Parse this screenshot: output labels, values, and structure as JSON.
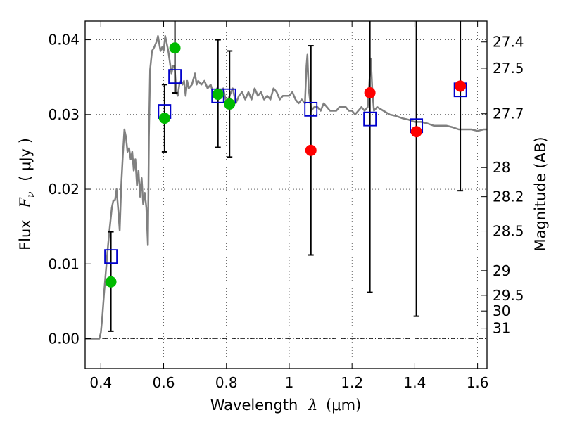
{
  "chart_data": {
    "type": "scatter",
    "xlabel": "Wavelength",
    "xlabel_symbol": "λ",
    "xlabel_unit": "(μm)",
    "ylabel": "Flux",
    "ylabel_symbol": "F",
    "ylabel_subscript": "ν",
    "ylabel_unit": "( μJy )",
    "y2label": "Magnitude (AB)",
    "xlim": [
      0.35,
      1.63
    ],
    "ylim": [
      -0.004,
      0.0425
    ],
    "grid": true,
    "x_ticks": [
      0.4,
      0.6,
      0.8,
      1.0,
      1.2,
      1.4,
      1.6
    ],
    "x_tick_labels": [
      "0.4",
      "0.6",
      "0.8",
      "1",
      "1.2",
      "1.4",
      "1.6"
    ],
    "y_ticks": [
      0.0,
      0.01,
      0.02,
      0.03,
      0.04
    ],
    "y_tick_labels": [
      "0.00",
      "0.01",
      "0.02",
      "0.03",
      "0.04"
    ],
    "y2_ticks": [
      {
        "label": "27.4",
        "flux": 0.0397
      },
      {
        "label": "27.5",
        "flux": 0.0362
      },
      {
        "label": "27.7",
        "flux": 0.0301
      },
      {
        "label": "28",
        "flux": 0.0229
      },
      {
        "label": "28.2",
        "flux": 0.019
      },
      {
        "label": "28.5",
        "flux": 0.0144
      },
      {
        "label": "29",
        "flux": 0.0091
      },
      {
        "label": "29.5",
        "flux": 0.0058
      },
      {
        "label": "30",
        "flux": 0.0037
      },
      {
        "label": "31",
        "flux": 0.0014
      }
    ],
    "zero_line": 0.0,
    "series": [
      {
        "kind": "line",
        "color": "#808080",
        "points": [
          [
            0.35,
            0.0
          ],
          [
            0.395,
            0.0
          ],
          [
            0.4,
            0.0008
          ],
          [
            0.405,
            0.003
          ],
          [
            0.41,
            0.006
          ],
          [
            0.415,
            0.0085
          ],
          [
            0.42,
            0.011
          ],
          [
            0.425,
            0.0135
          ],
          [
            0.43,
            0.0155
          ],
          [
            0.435,
            0.0175
          ],
          [
            0.44,
            0.0185
          ],
          [
            0.445,
            0.0185
          ],
          [
            0.45,
            0.02
          ],
          [
            0.455,
            0.0175
          ],
          [
            0.46,
            0.0145
          ],
          [
            0.465,
            0.0205
          ],
          [
            0.47,
            0.0245
          ],
          [
            0.475,
            0.028
          ],
          [
            0.48,
            0.027
          ],
          [
            0.485,
            0.025
          ],
          [
            0.49,
            0.0255
          ],
          [
            0.495,
            0.024
          ],
          [
            0.5,
            0.025
          ],
          [
            0.505,
            0.0225
          ],
          [
            0.51,
            0.024
          ],
          [
            0.515,
            0.0205
          ],
          [
            0.52,
            0.0225
          ],
          [
            0.525,
            0.019
          ],
          [
            0.53,
            0.0215
          ],
          [
            0.535,
            0.018
          ],
          [
            0.54,
            0.0195
          ],
          [
            0.545,
            0.0175
          ],
          [
            0.55,
            0.0125
          ],
          [
            0.553,
            0.027
          ],
          [
            0.557,
            0.036
          ],
          [
            0.563,
            0.0385
          ],
          [
            0.57,
            0.039
          ],
          [
            0.578,
            0.0398
          ],
          [
            0.582,
            0.0405
          ],
          [
            0.586,
            0.0395
          ],
          [
            0.59,
            0.0385
          ],
          [
            0.595,
            0.039
          ],
          [
            0.6,
            0.0385
          ],
          [
            0.605,
            0.0405
          ],
          [
            0.61,
            0.0395
          ],
          [
            0.615,
            0.0385
          ],
          [
            0.62,
            0.037
          ],
          [
            0.625,
            0.0355
          ],
          [
            0.63,
            0.0365
          ],
          [
            0.635,
            0.0365
          ],
          [
            0.64,
            0.033
          ],
          [
            0.645,
            0.0325
          ],
          [
            0.65,
            0.034
          ],
          [
            0.655,
            0.0345
          ],
          [
            0.66,
            0.034
          ],
          [
            0.665,
            0.0345
          ],
          [
            0.67,
            0.0325
          ],
          [
            0.675,
            0.0345
          ],
          [
            0.68,
            0.0335
          ],
          [
            0.69,
            0.034
          ],
          [
            0.7,
            0.0355
          ],
          [
            0.705,
            0.034
          ],
          [
            0.71,
            0.0345
          ],
          [
            0.72,
            0.034
          ],
          [
            0.73,
            0.0345
          ],
          [
            0.74,
            0.0335
          ],
          [
            0.75,
            0.034
          ],
          [
            0.76,
            0.0325
          ],
          [
            0.77,
            0.0335
          ],
          [
            0.78,
            0.0325
          ],
          [
            0.79,
            0.0335
          ],
          [
            0.8,
            0.0315
          ],
          [
            0.81,
            0.0325
          ],
          [
            0.82,
            0.0335
          ],
          [
            0.83,
            0.0315
          ],
          [
            0.84,
            0.0325
          ],
          [
            0.85,
            0.033
          ],
          [
            0.86,
            0.032
          ],
          [
            0.87,
            0.033
          ],
          [
            0.88,
            0.032
          ],
          [
            0.89,
            0.0335
          ],
          [
            0.9,
            0.0325
          ],
          [
            0.91,
            0.033
          ],
          [
            0.92,
            0.032
          ],
          [
            0.93,
            0.0325
          ],
          [
            0.94,
            0.032
          ],
          [
            0.95,
            0.0335
          ],
          [
            0.96,
            0.033
          ],
          [
            0.97,
            0.032
          ],
          [
            0.98,
            0.0325
          ],
          [
            0.99,
            0.0325
          ],
          [
            1.0,
            0.0325
          ],
          [
            1.01,
            0.033
          ],
          [
            1.02,
            0.032
          ],
          [
            1.03,
            0.0315
          ],
          [
            1.04,
            0.032
          ],
          [
            1.05,
            0.0315
          ],
          [
            1.055,
            0.0365
          ],
          [
            1.058,
            0.038
          ],
          [
            1.062,
            0.0335
          ],
          [
            1.07,
            0.0305
          ],
          [
            1.08,
            0.031
          ],
          [
            1.09,
            0.031
          ],
          [
            1.1,
            0.0305
          ],
          [
            1.11,
            0.0315
          ],
          [
            1.12,
            0.031
          ],
          [
            1.13,
            0.0305
          ],
          [
            1.14,
            0.0305
          ],
          [
            1.15,
            0.0305
          ],
          [
            1.16,
            0.031
          ],
          [
            1.17,
            0.031
          ],
          [
            1.18,
            0.031
          ],
          [
            1.19,
            0.0305
          ],
          [
            1.2,
            0.0305
          ],
          [
            1.21,
            0.03
          ],
          [
            1.22,
            0.0305
          ],
          [
            1.23,
            0.031
          ],
          [
            1.24,
            0.0305
          ],
          [
            1.25,
            0.031
          ],
          [
            1.255,
            0.034
          ],
          [
            1.26,
            0.0375
          ],
          [
            1.265,
            0.033
          ],
          [
            1.27,
            0.0305
          ],
          [
            1.28,
            0.031
          ],
          [
            1.3,
            0.0305
          ],
          [
            1.32,
            0.03
          ],
          [
            1.34,
            0.0298
          ],
          [
            1.36,
            0.0295
          ],
          [
            1.38,
            0.0293
          ],
          [
            1.4,
            0.029
          ],
          [
            1.42,
            0.029
          ],
          [
            1.44,
            0.0288
          ],
          [
            1.46,
            0.0285
          ],
          [
            1.48,
            0.0285
          ],
          [
            1.5,
            0.0285
          ],
          [
            1.52,
            0.0283
          ],
          [
            1.54,
            0.028
          ],
          [
            1.56,
            0.028
          ],
          [
            1.58,
            0.028
          ],
          [
            1.6,
            0.0278
          ],
          [
            1.62,
            0.028
          ],
          [
            1.63,
            0.028
          ]
        ]
      },
      {
        "kind": "points",
        "marker": "open-square",
        "color": "#0000cc",
        "points": [
          {
            "x": 0.432,
            "y": 0.011
          },
          {
            "x": 0.603,
            "y": 0.0304
          },
          {
            "x": 0.636,
            "y": 0.0351
          },
          {
            "x": 0.773,
            "y": 0.0325
          },
          {
            "x": 0.81,
            "y": 0.0325
          },
          {
            "x": 1.069,
            "y": 0.0307
          },
          {
            "x": 1.257,
            "y": 0.0294
          },
          {
            "x": 1.405,
            "y": 0.0285
          },
          {
            "x": 1.545,
            "y": 0.0333
          }
        ]
      },
      {
        "kind": "points",
        "marker": "circle",
        "color": "#00bb00",
        "points": [
          {
            "x": 0.432,
            "y": 0.0076
          },
          {
            "x": 0.603,
            "y": 0.0295
          },
          {
            "x": 0.636,
            "y": 0.0389
          },
          {
            "x": 0.773,
            "y": 0.0327
          },
          {
            "x": 0.81,
            "y": 0.0314
          }
        ]
      },
      {
        "kind": "points",
        "marker": "circle",
        "color": "#ff0000",
        "points": [
          {
            "x": 1.069,
            "y": 0.0252
          },
          {
            "x": 1.257,
            "y": 0.0329
          },
          {
            "x": 1.405,
            "y": 0.0277
          },
          {
            "x": 1.545,
            "y": 0.0338
          }
        ]
      }
    ],
    "error_bars": [
      {
        "x": 0.432,
        "low": 0.001,
        "high": 0.0143
      },
      {
        "x": 0.603,
        "low": 0.025,
        "high": 0.034
      },
      {
        "x": 0.636,
        "low": 0.0329,
        "high": 0.0425
      },
      {
        "x": 0.773,
        "low": 0.0256,
        "high": 0.04
      },
      {
        "x": 0.81,
        "low": 0.0243,
        "high": 0.0385
      },
      {
        "x": 1.069,
        "low": 0.0112,
        "high": 0.0392
      },
      {
        "x": 1.257,
        "low": 0.0062,
        "high": 0.0425
      },
      {
        "x": 1.405,
        "low": 0.003,
        "high": 0.0425
      },
      {
        "x": 1.545,
        "low": 0.0198,
        "high": 0.0425
      }
    ]
  }
}
